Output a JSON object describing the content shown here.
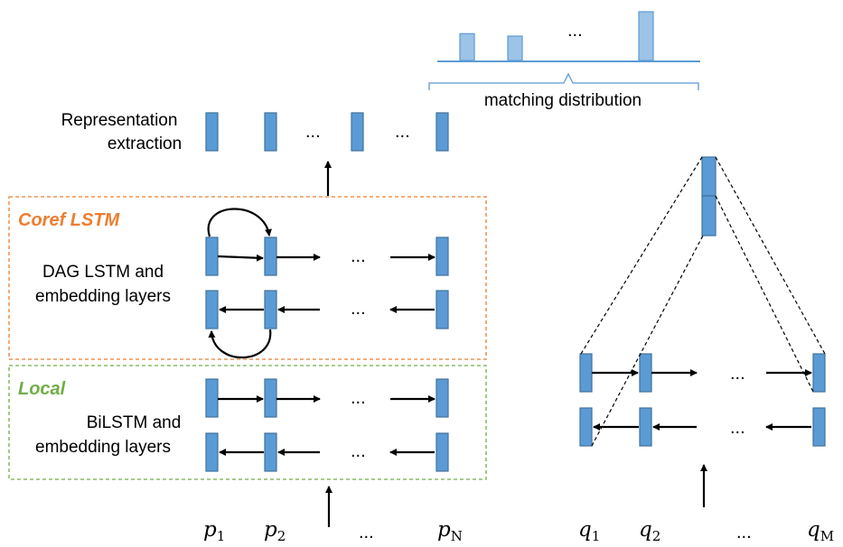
{
  "labels": {
    "representation_extraction_line1": "Representation",
    "representation_extraction_line2": "extraction",
    "matching_distribution": "matching distribution",
    "coref_lstm": "Coref LSTM",
    "local": "Local",
    "dag_lstm_line1": "DAG LSTM and",
    "dag_lstm_line2": "embedding layers",
    "bilstm_line1": "BiLSTM and",
    "bilstm_line2": "embedding layers"
  },
  "ellipsis": "...",
  "passage_tokens": [
    {
      "base": "p",
      "sub": "1"
    },
    {
      "base": "p",
      "sub": "2"
    },
    {
      "base": "p",
      "sub": "N"
    }
  ],
  "question_tokens": [
    {
      "base": "q",
      "sub": "1"
    },
    {
      "base": "q",
      "sub": "2"
    },
    {
      "base": "q",
      "sub": "M"
    }
  ],
  "matching_distribution_values": [
    0.55,
    0.5,
    1.0
  ],
  "colors": {
    "vector_fill": "#5B9BD5",
    "bar_fill": "#9DC3E6",
    "coref_accent": "#ED7D31",
    "local_accent": "#70AD47",
    "axis": "#5B9BD5"
  }
}
